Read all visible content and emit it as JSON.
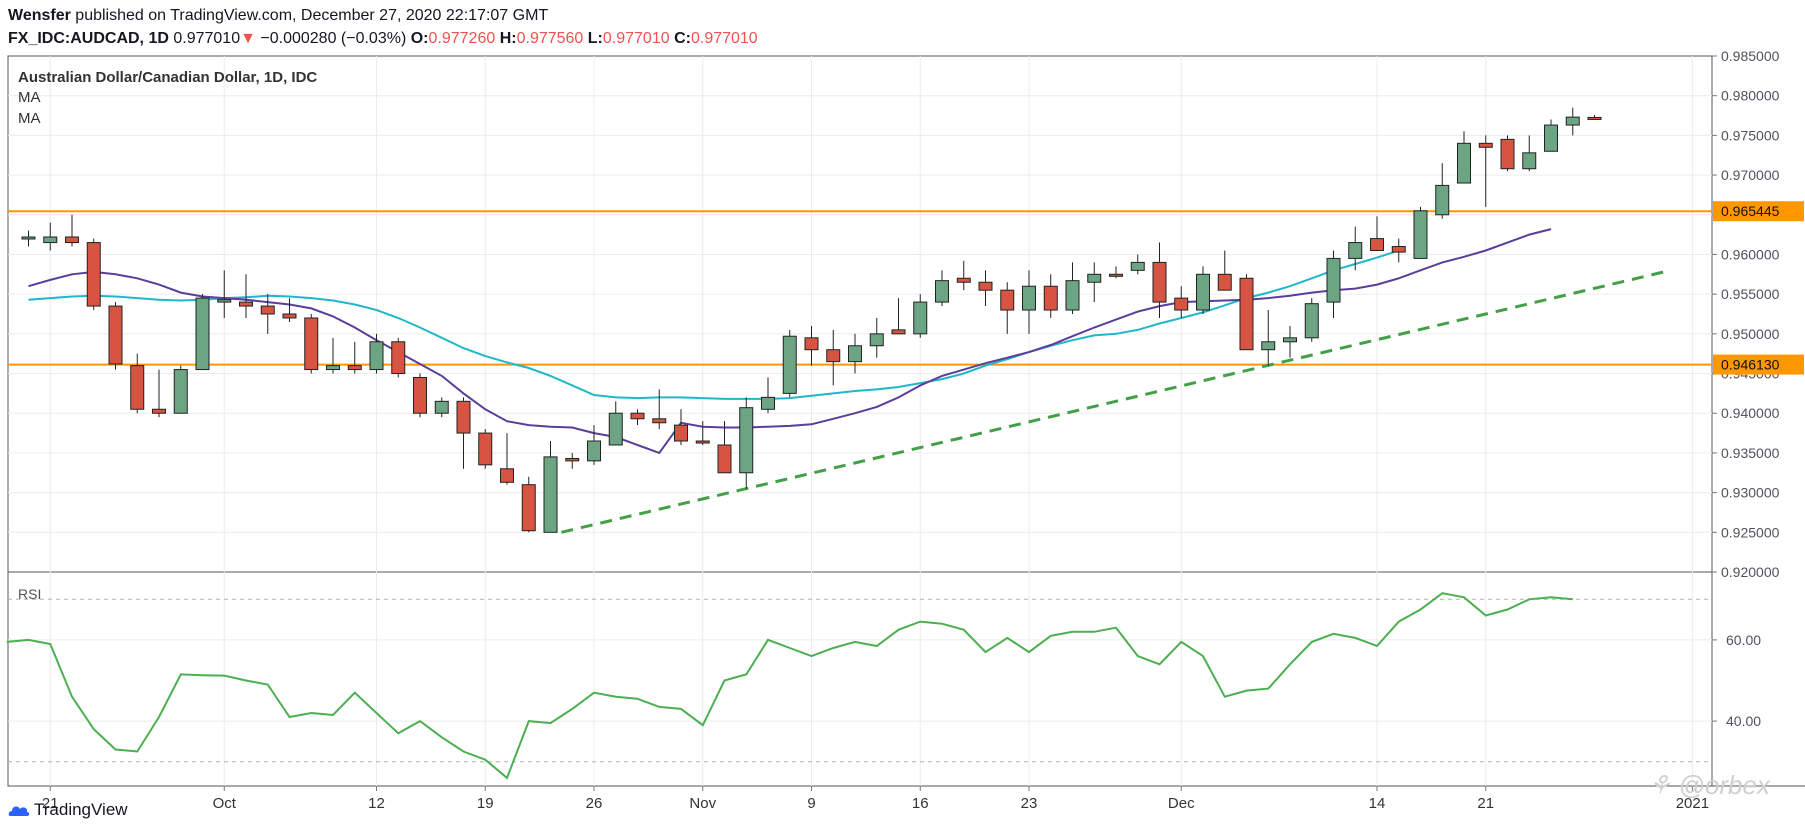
{
  "header": {
    "author": "Wensfer",
    "published_text": "published on TradingView.com, December 27, 2020 22:17:07 GMT",
    "symbol": "FX_IDC:AUDCAD, 1D",
    "last": "0.977010",
    "change_arrow": "▼",
    "change": "−0.000280 (−0.03%)",
    "o_label": "O:",
    "o": "0.977260",
    "h_label": "H:",
    "h": "0.977560",
    "l_label": "L:",
    "l": "0.977010",
    "c_label": "C:",
    "c": "0.977010"
  },
  "footer": {
    "brand": "TradingView",
    "watermark": "@orbex"
  },
  "colors": {
    "up": "#6ba583",
    "down": "#d75442",
    "ma_fast": "#5b3d9b",
    "ma_slow": "#20b8c8",
    "trend": "#43a047",
    "level": "#ff9800",
    "rsi": "#4caf50"
  },
  "chart_data": [
    {
      "type": "candlestick",
      "title": "Australian Dollar/Canadian Dollar, 1D, IDC",
      "indicator_labels": [
        "MA",
        "MA"
      ],
      "ylim": [
        0.92,
        0.985
      ],
      "y_ticks": [
        "0.985000",
        "0.980000",
        "0.975000",
        "0.970000",
        "0.965000",
        "0.960000",
        "0.955000",
        "0.950000",
        "0.945000",
        "0.940000",
        "0.935000",
        "0.930000",
        "0.925000",
        "0.920000"
      ],
      "x_ticks": [
        {
          "label": "21",
          "index": 1
        },
        {
          "label": "Oct",
          "index": 9
        },
        {
          "label": "12",
          "index": 16
        },
        {
          "label": "19",
          "index": 21
        },
        {
          "label": "26",
          "index": 26
        },
        {
          "label": "Nov",
          "index": 31
        },
        {
          "label": "9",
          "index": 36
        },
        {
          "label": "16",
          "index": 41
        },
        {
          "label": "23",
          "index": 46
        },
        {
          "label": "Dec",
          "index": 53
        },
        {
          "label": "14",
          "index": 62
        },
        {
          "label": "21",
          "index": 67
        },
        {
          "label": "2021",
          "index": 76.5
        }
      ],
      "candles": [
        {
          "o": 0.962,
          "h": 0.963,
          "l": 0.961,
          "c": 0.9622
        },
        {
          "o": 0.9615,
          "h": 0.964,
          "l": 0.9605,
          "c": 0.9622
        },
        {
          "o": 0.9622,
          "h": 0.965,
          "l": 0.961,
          "c": 0.9615
        },
        {
          "o": 0.9615,
          "h": 0.962,
          "l": 0.953,
          "c": 0.9535
        },
        {
          "o": 0.9535,
          "h": 0.954,
          "l": 0.9455,
          "c": 0.9462
        },
        {
          "o": 0.946,
          "h": 0.9475,
          "l": 0.94,
          "c": 0.9405
        },
        {
          "o": 0.9405,
          "h": 0.9455,
          "l": 0.9395,
          "c": 0.94
        },
        {
          "o": 0.94,
          "h": 0.946,
          "l": 0.94,
          "c": 0.9455
        },
        {
          "o": 0.9455,
          "h": 0.955,
          "l": 0.9455,
          "c": 0.9545
        },
        {
          "o": 0.954,
          "h": 0.958,
          "l": 0.952,
          "c": 0.9543
        },
        {
          "o": 0.954,
          "h": 0.9575,
          "l": 0.952,
          "c": 0.9535
        },
        {
          "o": 0.9535,
          "h": 0.955,
          "l": 0.95,
          "c": 0.9525
        },
        {
          "o": 0.9525,
          "h": 0.9545,
          "l": 0.9515,
          "c": 0.952
        },
        {
          "o": 0.952,
          "h": 0.9525,
          "l": 0.945,
          "c": 0.9455
        },
        {
          "o": 0.9455,
          "h": 0.9495,
          "l": 0.945,
          "c": 0.946
        },
        {
          "o": 0.946,
          "h": 0.949,
          "l": 0.945,
          "c": 0.9455
        },
        {
          "o": 0.9455,
          "h": 0.95,
          "l": 0.945,
          "c": 0.949
        },
        {
          "o": 0.949,
          "h": 0.9495,
          "l": 0.9445,
          "c": 0.945
        },
        {
          "o": 0.9445,
          "h": 0.945,
          "l": 0.9395,
          "c": 0.94
        },
        {
          "o": 0.94,
          "h": 0.942,
          "l": 0.9395,
          "c": 0.9415
        },
        {
          "o": 0.9415,
          "h": 0.942,
          "l": 0.933,
          "c": 0.9375
        },
        {
          "o": 0.9375,
          "h": 0.938,
          "l": 0.933,
          "c": 0.9335
        },
        {
          "o": 0.933,
          "h": 0.9375,
          "l": 0.931,
          "c": 0.9313
        },
        {
          "o": 0.931,
          "h": 0.932,
          "l": 0.925,
          "c": 0.9252
        },
        {
          "o": 0.925,
          "h": 0.9365,
          "l": 0.925,
          "c": 0.9345
        },
        {
          "o": 0.9343,
          "h": 0.935,
          "l": 0.933,
          "c": 0.934
        },
        {
          "o": 0.934,
          "h": 0.9385,
          "l": 0.9335,
          "c": 0.9365
        },
        {
          "o": 0.936,
          "h": 0.9415,
          "l": 0.936,
          "c": 0.94
        },
        {
          "o": 0.94,
          "h": 0.9405,
          "l": 0.9385,
          "c": 0.9393
        },
        {
          "o": 0.9393,
          "h": 0.943,
          "l": 0.938,
          "c": 0.9388
        },
        {
          "o": 0.9385,
          "h": 0.9405,
          "l": 0.936,
          "c": 0.9365
        },
        {
          "o": 0.9365,
          "h": 0.939,
          "l": 0.936,
          "c": 0.9363
        },
        {
          "o": 0.936,
          "h": 0.939,
          "l": 0.9325,
          "c": 0.9325
        },
        {
          "o": 0.9325,
          "h": 0.942,
          "l": 0.9305,
          "c": 0.9407
        },
        {
          "o": 0.9405,
          "h": 0.9445,
          "l": 0.94,
          "c": 0.942
        },
        {
          "o": 0.9425,
          "h": 0.9505,
          "l": 0.942,
          "c": 0.9497
        },
        {
          "o": 0.9495,
          "h": 0.951,
          "l": 0.946,
          "c": 0.948
        },
        {
          "o": 0.948,
          "h": 0.9505,
          "l": 0.9435,
          "c": 0.9465
        },
        {
          "o": 0.9465,
          "h": 0.95,
          "l": 0.945,
          "c": 0.9485
        },
        {
          "o": 0.9485,
          "h": 0.952,
          "l": 0.947,
          "c": 0.95
        },
        {
          "o": 0.9505,
          "h": 0.9545,
          "l": 0.95,
          "c": 0.95
        },
        {
          "o": 0.95,
          "h": 0.955,
          "l": 0.9495,
          "c": 0.954
        },
        {
          "o": 0.954,
          "h": 0.958,
          "l": 0.9535,
          "c": 0.9567
        },
        {
          "o": 0.957,
          "h": 0.9592,
          "l": 0.9555,
          "c": 0.9565
        },
        {
          "o": 0.9565,
          "h": 0.958,
          "l": 0.9535,
          "c": 0.9555
        },
        {
          "o": 0.9555,
          "h": 0.9565,
          "l": 0.95,
          "c": 0.953
        },
        {
          "o": 0.953,
          "h": 0.958,
          "l": 0.95,
          "c": 0.956
        },
        {
          "o": 0.956,
          "h": 0.9575,
          "l": 0.952,
          "c": 0.953
        },
        {
          "o": 0.953,
          "h": 0.959,
          "l": 0.9525,
          "c": 0.9567
        },
        {
          "o": 0.9565,
          "h": 0.959,
          "l": 0.954,
          "c": 0.9575
        },
        {
          "o": 0.9575,
          "h": 0.9585,
          "l": 0.957,
          "c": 0.9573
        },
        {
          "o": 0.958,
          "h": 0.96,
          "l": 0.9575,
          "c": 0.959
        },
        {
          "o": 0.959,
          "h": 0.9615,
          "l": 0.952,
          "c": 0.954
        },
        {
          "o": 0.9545,
          "h": 0.956,
          "l": 0.952,
          "c": 0.953
        },
        {
          "o": 0.953,
          "h": 0.9585,
          "l": 0.9525,
          "c": 0.9575
        },
        {
          "o": 0.9575,
          "h": 0.9605,
          "l": 0.9555,
          "c": 0.9555
        },
        {
          "o": 0.957,
          "h": 0.9575,
          "l": 0.948,
          "c": 0.948
        },
        {
          "o": 0.948,
          "h": 0.953,
          "l": 0.946,
          "c": 0.949
        },
        {
          "o": 0.949,
          "h": 0.951,
          "l": 0.947,
          "c": 0.9495
        },
        {
          "o": 0.9495,
          "h": 0.9545,
          "l": 0.949,
          "c": 0.9538
        },
        {
          "o": 0.954,
          "h": 0.9605,
          "l": 0.952,
          "c": 0.9595
        },
        {
          "o": 0.9595,
          "h": 0.9635,
          "l": 0.958,
          "c": 0.9615
        },
        {
          "o": 0.962,
          "h": 0.9648,
          "l": 0.9605,
          "c": 0.9605
        },
        {
          "o": 0.961,
          "h": 0.962,
          "l": 0.959,
          "c": 0.9603
        },
        {
          "o": 0.9595,
          "h": 0.966,
          "l": 0.9595,
          "c": 0.9655
        },
        {
          "o": 0.965,
          "h": 0.9715,
          "l": 0.9645,
          "c": 0.9687
        },
        {
          "o": 0.969,
          "h": 0.9755,
          "l": 0.969,
          "c": 0.974
        },
        {
          "o": 0.974,
          "h": 0.975,
          "l": 0.966,
          "c": 0.9735
        },
        {
          "o": 0.9745,
          "h": 0.975,
          "l": 0.9705,
          "c": 0.9708
        },
        {
          "o": 0.9708,
          "h": 0.975,
          "l": 0.9705,
          "c": 0.9728
        },
        {
          "o": 0.973,
          "h": 0.977,
          "l": 0.973,
          "c": 0.9763
        },
        {
          "o": 0.9763,
          "h": 0.9785,
          "l": 0.975,
          "c": 0.9773
        },
        {
          "o": 0.97726,
          "h": 0.97756,
          "l": 0.97701,
          "c": 0.97701
        }
      ],
      "ma_fast": [
        0.956,
        0.9568,
        0.9575,
        0.9578,
        0.9575,
        0.957,
        0.9562,
        0.9552,
        0.9547,
        0.9545,
        0.9543,
        0.954,
        0.9537,
        0.9532,
        0.9522,
        0.9508,
        0.9492,
        0.9477,
        0.9462,
        0.9447,
        0.9425,
        0.9405,
        0.939,
        0.9385,
        0.9383,
        0.9382,
        0.9375,
        0.937,
        0.936,
        0.935,
        0.9388,
        0.9383,
        0.9382,
        0.9382,
        0.9383,
        0.9384,
        0.9386,
        0.9393,
        0.94,
        0.9408,
        0.942,
        0.9435,
        0.9447,
        0.9455,
        0.9463,
        0.947,
        0.9477,
        0.9486,
        0.9497,
        0.9508,
        0.9518,
        0.9528,
        0.9535,
        0.954,
        0.9541,
        0.9542,
        0.9543,
        0.9545,
        0.9548,
        0.9552,
        0.9555,
        0.9557,
        0.9562,
        0.957,
        0.958,
        0.959,
        0.9597,
        0.9605,
        0.9615,
        0.9625,
        0.9632
      ],
      "ma_slow": [
        0.9543,
        0.9545,
        0.9547,
        0.9548,
        0.9547,
        0.9545,
        0.9543,
        0.9542,
        0.9543,
        0.9545,
        0.9546,
        0.9548,
        0.9547,
        0.9545,
        0.9542,
        0.9537,
        0.953,
        0.952,
        0.9508,
        0.9495,
        0.9482,
        0.9472,
        0.9464,
        0.9457,
        0.9447,
        0.9435,
        0.9423,
        0.942,
        0.9419,
        0.942,
        0.942,
        0.9419,
        0.9418,
        0.9418,
        0.9418,
        0.9419,
        0.9422,
        0.9425,
        0.9428,
        0.943,
        0.9433,
        0.9438,
        0.9443,
        0.945,
        0.946,
        0.9468,
        0.9477,
        0.9485,
        0.9492,
        0.9498,
        0.95,
        0.9505,
        0.9513,
        0.952,
        0.9527,
        0.9536,
        0.9545,
        0.9552,
        0.956,
        0.957,
        0.958,
        0.9588,
        0.9596,
        0.9605
      ],
      "ma_slow_start_index": 0,
      "trendline": {
        "from": {
          "index": 24.5,
          "y": 0.925
        },
        "to": {
          "index": 75.5,
          "y": 0.958
        }
      },
      "levels": [
        {
          "y": 0.965445,
          "label": "0.965445"
        },
        {
          "y": 0.94613,
          "label": "0.946130"
        }
      ]
    },
    {
      "type": "line",
      "title": "RSI",
      "ylim": [
        25,
        75
      ],
      "y_ticks": [
        "60.00",
        "40.00"
      ],
      "bands": [
        70,
        30
      ],
      "values": [
        59.5,
        60,
        59,
        46,
        38,
        33,
        32.5,
        41,
        51.5,
        51.3,
        51.2,
        50,
        49,
        41,
        42,
        41.5,
        47,
        42,
        37,
        40,
        36,
        32.5,
        30.5,
        26,
        40,
        39.5,
        43,
        47,
        46,
        45.5,
        43.5,
        43,
        39,
        50,
        51.5,
        60,
        58,
        56,
        58,
        59.5,
        58.5,
        62.5,
        64.5,
        64,
        62.5,
        57,
        60.5,
        57,
        61,
        62,
        62,
        63,
        56,
        54,
        59.5,
        56,
        46,
        47.5,
        48,
        54,
        59.5,
        61.5,
        60.5,
        58.5,
        64.5,
        67.5,
        71.5,
        70.5,
        66,
        67.5,
        70,
        70.5,
        70
      ]
    }
  ]
}
